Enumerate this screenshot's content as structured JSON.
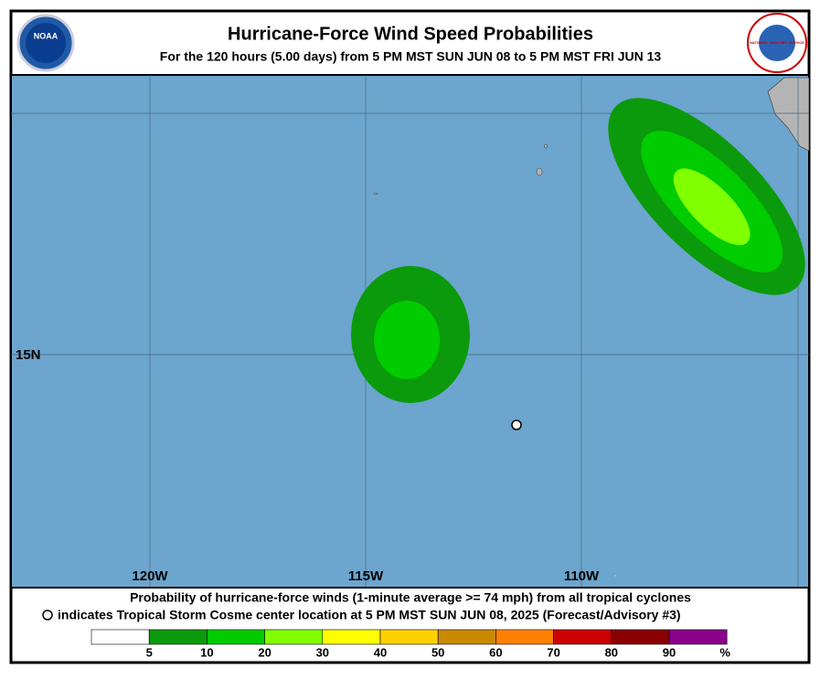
{
  "header": {
    "title": "Hurricane-Force Wind Speed Probabilities",
    "subtitle": "For the 120 hours (5.00 days) from 5 PM MST SUN JUN 08 to 5 PM MST FRI JUN 13",
    "left_logo": "NOAA",
    "right_logo": "NATIONAL WEATHER SERVICE"
  },
  "map": {
    "lon_labels": [
      "120W",
      "115W",
      "110W"
    ],
    "lat_labels": [
      "15N"
    ]
  },
  "footer": {
    "line1": "Probability of hurricane-force winds (1-minute average >= 74 mph) from all tropical cyclones",
    "line2": "indicates Tropical Storm Cosme center location at 5 PM MST SUN JUN 08, 2025 (Forecast/Advisory #3)"
  },
  "legend": {
    "levels": [
      5,
      10,
      20,
      30,
      40,
      50,
      60,
      70,
      80,
      90
    ],
    "unit": "%",
    "colors": [
      "#ffffff",
      "#0b9a0b",
      "#00cc00",
      "#80ff00",
      "#ffff00",
      "#ffd100",
      "#c88a00",
      "#ff8000",
      "#cc0000",
      "#8b0000",
      "#8b008b"
    ]
  }
}
